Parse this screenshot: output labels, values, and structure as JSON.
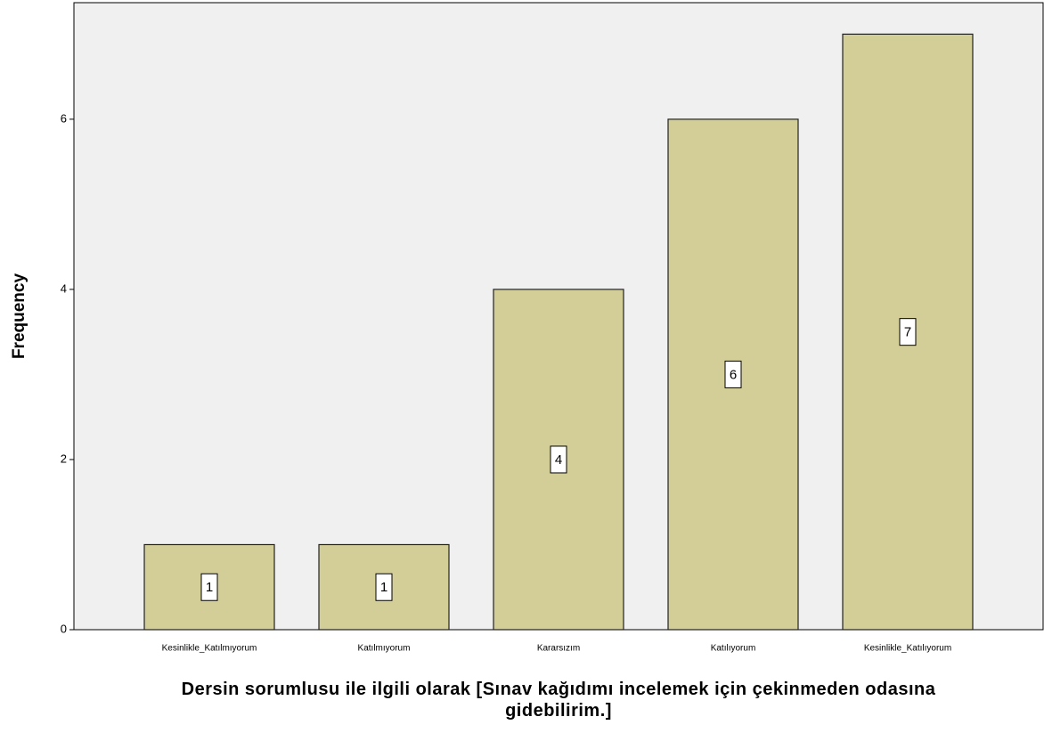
{
  "chart_data": {
    "type": "bar",
    "x_label": "Dersin sorumlusu ile ilgili olarak  [Sınav kağıdımı incelemek için çekinmeden odasına gidebilirim.]",
    "y_label": "Frequency",
    "categories": [
      "Kesinlikle_Katılmıyorum",
      "Katılmıyorum",
      "Kararsızım",
      "Katılıyorum",
      "Kesinlikle_Katılıyorum"
    ],
    "values": [
      1,
      1,
      4,
      6,
      7
    ],
    "color": "#d3ce97",
    "ylim": [
      0,
      7.37
    ],
    "yticks": [
      0,
      2,
      4,
      6
    ],
    "grid": false
  }
}
